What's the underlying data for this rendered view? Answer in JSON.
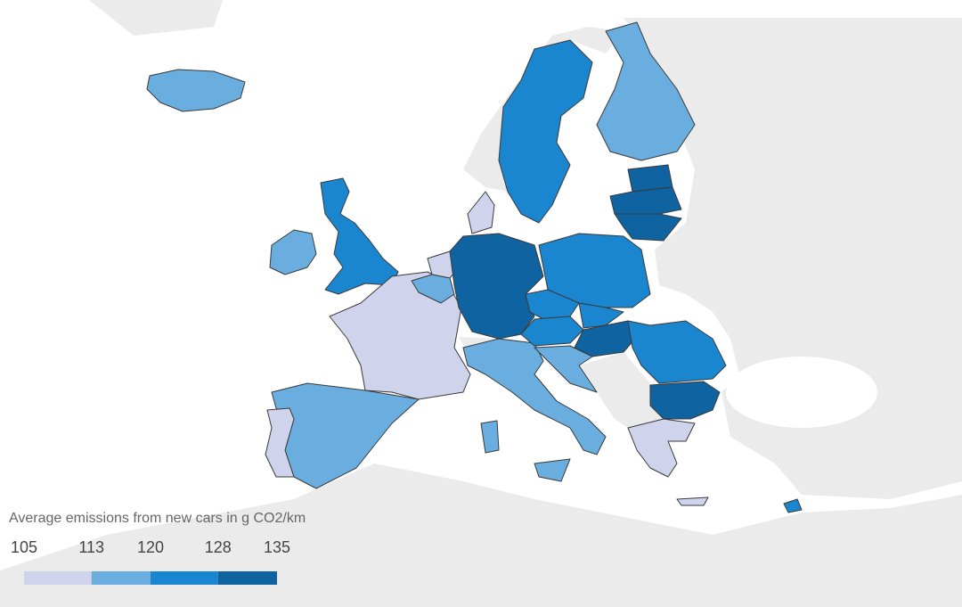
{
  "legend": {
    "title": "Average emissions from new cars in g CO2/km",
    "ticks": [
      105,
      113,
      120,
      128,
      135
    ],
    "range": [
      105,
      135
    ],
    "colors": [
      "#cfd3ec",
      "#6aaee0",
      "#1a86d0",
      "#0f63a0"
    ]
  }
}
